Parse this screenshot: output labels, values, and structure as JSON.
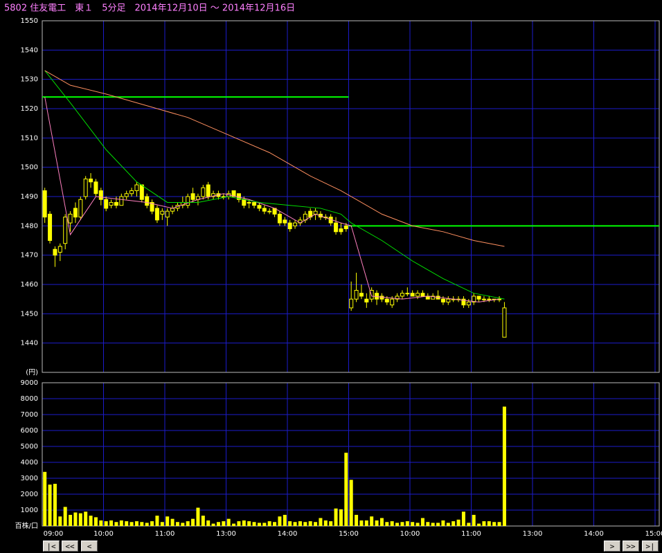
{
  "chart_data": [
    {
      "type": "candlestick",
      "title": "5802 住友電工　東１　5分足　2014年12月10日 ～ 2014年12月16日",
      "xlim": [
        0,
        120
      ],
      "ylim": [
        1430,
        1550
      ],
      "yticks": [
        {
          "value": 1430,
          "label": "(円)"
        },
        1440,
        1450,
        1460,
        1470,
        1480,
        1490,
        1500,
        1510,
        1520,
        1530,
        1540,
        1550
      ],
      "color": "#ffff00",
      "grid_color": "#1c1ccc",
      "x": [
        0,
        1,
        2,
        3,
        4,
        5,
        6,
        7,
        8,
        9,
        10,
        11,
        12,
        13,
        14,
        15,
        16,
        17,
        18,
        19,
        20,
        21,
        22,
        23,
        24,
        25,
        26,
        27,
        28,
        29,
        30,
        31,
        32,
        33,
        34,
        35,
        36,
        37,
        38,
        39,
        40,
        41,
        42,
        43,
        44,
        45,
        46,
        47,
        48,
        49,
        50,
        51,
        52,
        53,
        54,
        55,
        56,
        57,
        58,
        59,
        60,
        61,
        62,
        63,
        64,
        65,
        66,
        67,
        68,
        69,
        70,
        71,
        72,
        73,
        74,
        75,
        76,
        77,
        78,
        79,
        80,
        81,
        82,
        83,
        84,
        85,
        86,
        87,
        88,
        89,
        90
      ],
      "open": [
        1492,
        1484,
        1472,
        1471,
        1474,
        1481,
        1486,
        1483,
        1490,
        1496,
        1495,
        1492,
        1489,
        1487,
        1488,
        1487,
        1490,
        1491,
        1492,
        1494,
        1490,
        1488,
        1486,
        1484,
        1483,
        1485,
        1486,
        1487,
        1487,
        1491,
        1489,
        1490,
        1494,
        1490,
        1491,
        1490,
        1490,
        1492,
        1491,
        1489,
        1488,
        1488,
        1487,
        1486,
        1485,
        1486,
        1484,
        1482,
        1481,
        1480,
        1481,
        1482,
        1485,
        1484,
        1484,
        1483,
        1483,
        1481,
        1479,
        1480,
        1452,
        1455,
        1457,
        1455,
        1455,
        1457,
        1456,
        1455,
        1453,
        1455,
        1456,
        1457,
        1457,
        1456,
        1457,
        1456,
        1455,
        1456,
        1455,
        1454,
        1455,
        1455,
        1455,
        1453,
        1454,
        1456,
        1455,
        1455,
        1455,
        1455,
        1442
      ],
      "high": [
        1493,
        1485,
        1473,
        1474,
        1484,
        1485,
        1488,
        1490,
        1497,
        1498,
        1496,
        1493,
        1490,
        1489,
        1490,
        1491,
        1492,
        1493,
        1495,
        1494,
        1491,
        1489,
        1487,
        1486,
        1486,
        1487,
        1488,
        1490,
        1491,
        1493,
        1491,
        1494,
        1495,
        1492,
        1492,
        1491,
        1492,
        1492,
        1491,
        1490,
        1489,
        1488,
        1488,
        1487,
        1486,
        1486,
        1485,
        1483,
        1482,
        1482,
        1483,
        1485,
        1486,
        1486,
        1485,
        1484,
        1484,
        1483,
        1481,
        1481,
        1461,
        1464,
        1460,
        1457,
        1459,
        1458,
        1457,
        1456,
        1456,
        1457,
        1458,
        1459,
        1458,
        1458,
        1458,
        1457,
        1457,
        1458,
        1456,
        1456,
        1456,
        1456,
        1456,
        1455,
        1457,
        1456,
        1456,
        1456,
        1455,
        1456,
        1454
      ],
      "low": [
        1481,
        1474,
        1466,
        1468,
        1472,
        1478,
        1481,
        1482,
        1489,
        1493,
        1490,
        1487,
        1485,
        1486,
        1486,
        1487,
        1489,
        1490,
        1490,
        1488,
        1486,
        1484,
        1481,
        1482,
        1480,
        1484,
        1485,
        1486,
        1486,
        1488,
        1487,
        1489,
        1489,
        1489,
        1489,
        1489,
        1489,
        1490,
        1488,
        1486,
        1486,
        1486,
        1485,
        1484,
        1484,
        1483,
        1480,
        1480,
        1478,
        1479,
        1480,
        1481,
        1482,
        1482,
        1482,
        1482,
        1480,
        1477,
        1477,
        1478,
        1451,
        1454,
        1455,
        1452,
        1454,
        1453,
        1454,
        1453,
        1452,
        1454,
        1455,
        1456,
        1456,
        1455,
        1456,
        1455,
        1455,
        1455,
        1453,
        1453,
        1454,
        1454,
        1452,
        1452,
        1453,
        1454,
        1454,
        1454,
        1454,
        1454,
        1442
      ],
      "close": [
        1483,
        1475,
        1470,
        1473,
        1483,
        1484,
        1483,
        1489,
        1496,
        1495,
        1491,
        1489,
        1486,
        1488,
        1487,
        1490,
        1491,
        1492,
        1494,
        1489,
        1487,
        1485,
        1482,
        1485,
        1485,
        1486,
        1487,
        1488,
        1490,
        1489,
        1490,
        1493,
        1490,
        1491,
        1490,
        1490,
        1491,
        1490,
        1489,
        1487,
        1488,
        1487,
        1486,
        1485,
        1485,
        1484,
        1481,
        1481,
        1479,
        1481,
        1482,
        1484,
        1483,
        1485,
        1483,
        1483,
        1481,
        1478,
        1478,
        1479,
        1455,
        1458,
        1456,
        1454,
        1458,
        1455,
        1455,
        1454,
        1455,
        1456,
        1457,
        1457,
        1456,
        1457,
        1456,
        1455,
        1456,
        1455,
        1454,
        1455,
        1455,
        1455,
        1453,
        1454,
        1456,
        1455,
        1455,
        1455,
        1455,
        1455,
        1452
      ],
      "lines": [
        {
          "color": "#ff80c0",
          "x": [
            0,
            5,
            10,
            15,
            20,
            25,
            30,
            35,
            40,
            45,
            50,
            53,
            58,
            60,
            64,
            70,
            75,
            80,
            85,
            89
          ],
          "values": [
            1524,
            1477,
            1490,
            1489,
            1488,
            1486,
            1489,
            1491,
            1489,
            1486,
            1481,
            1484,
            1481,
            1480,
            1456,
            1455,
            1456,
            1455,
            1454,
            1455
          ]
        },
        {
          "color": "#00e000",
          "x": [
            0,
            5,
            12,
            18,
            24,
            30,
            36,
            42,
            48,
            54,
            58,
            60,
            66,
            72,
            78,
            84,
            90
          ],
          "values": [
            1533,
            1522,
            1506,
            1495,
            1488,
            1488,
            1490,
            1488,
            1487,
            1486,
            1484,
            1481,
            1475,
            1468,
            1462,
            1457,
            1455
          ]
        },
        {
          "color": "#ff9060",
          "x": [
            0,
            5,
            12,
            20,
            28,
            36,
            44,
            52,
            58,
            66,
            72,
            78,
            84,
            90
          ],
          "values": [
            1533,
            1528,
            1525,
            1521,
            1517,
            1511,
            1505,
            1497,
            1492,
            1484,
            1480,
            1478,
            1475,
            1473
          ]
        }
      ],
      "hlines": [
        {
          "value": 1524,
          "x": [
            0,
            60
          ],
          "color": "#00ff00"
        },
        {
          "value": 1480,
          "x": [
            60,
            120
          ],
          "color": "#00ff00"
        }
      ]
    },
    {
      "type": "bar",
      "xlim": [
        0,
        120
      ],
      "ylim": [
        0,
        9000
      ],
      "yticks": [
        {
          "value": 0,
          "label": "百株/口"
        },
        1000,
        2000,
        3000,
        4000,
        5000,
        6000,
        7000,
        8000,
        9000
      ],
      "xticks": [
        {
          "value": 0,
          "label": "09:00"
        },
        {
          "value": 12,
          "label": "10:00"
        },
        {
          "value": 24,
          "label": "11:00"
        },
        {
          "value": 36,
          "label": "13:00"
        },
        {
          "value": 48,
          "label": "14:00"
        },
        {
          "value": 60,
          "label": "15:00"
        },
        {
          "value": 72,
          "label": "10:00"
        },
        {
          "value": 84,
          "label": "11:00"
        },
        {
          "value": 96,
          "label": "13:00"
        },
        {
          "value": 108,
          "label": "14:00"
        },
        {
          "value": 120,
          "label": "15:00"
        }
      ],
      "color": "#ffff00",
      "x": [
        0,
        1,
        2,
        3,
        4,
        5,
        6,
        7,
        8,
        9,
        10,
        11,
        12,
        13,
        14,
        15,
        16,
        17,
        18,
        19,
        20,
        21,
        22,
        23,
        24,
        25,
        26,
        27,
        28,
        29,
        30,
        31,
        32,
        33,
        34,
        35,
        36,
        37,
        38,
        39,
        40,
        41,
        42,
        43,
        44,
        45,
        46,
        47,
        48,
        49,
        50,
        51,
        52,
        53,
        54,
        55,
        56,
        57,
        58,
        59,
        60,
        61,
        62,
        63,
        64,
        65,
        66,
        67,
        68,
        69,
        70,
        71,
        72,
        73,
        74,
        75,
        76,
        77,
        78,
        79,
        80,
        81,
        82,
        83,
        84,
        85,
        86,
        87,
        88,
        89,
        90
      ],
      "values": [
        3400,
        2600,
        2650,
        600,
        1200,
        700,
        850,
        800,
        900,
        650,
        550,
        350,
        300,
        350,
        250,
        350,
        300,
        250,
        300,
        250,
        200,
        300,
        650,
        250,
        600,
        450,
        250,
        200,
        300,
        450,
        1150,
        650,
        350,
        150,
        250,
        300,
        450,
        150,
        300,
        350,
        300,
        250,
        200,
        200,
        300,
        250,
        600,
        700,
        300,
        250,
        300,
        250,
        300,
        250,
        500,
        350,
        300,
        1100,
        1050,
        4600,
        2900,
        700,
        350,
        350,
        600,
        350,
        500,
        250,
        300,
        200,
        250,
        300,
        250,
        200,
        500,
        250,
        200,
        200,
        350,
        200,
        300,
        400,
        900,
        200,
        700,
        150,
        300,
        300,
        250,
        250,
        7500
      ]
    }
  ],
  "nav": [
    "|<",
    "<<",
    "<",
    ">",
    ">>",
    ">|"
  ]
}
